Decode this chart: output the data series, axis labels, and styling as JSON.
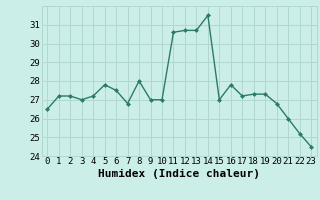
{
  "x": [
    0,
    1,
    2,
    3,
    4,
    5,
    6,
    7,
    8,
    9,
    10,
    11,
    12,
    13,
    14,
    15,
    16,
    17,
    18,
    19,
    20,
    21,
    22,
    23
  ],
  "y": [
    26.5,
    27.2,
    27.2,
    27.0,
    27.2,
    27.8,
    27.5,
    26.8,
    28.0,
    27.0,
    27.0,
    30.6,
    30.7,
    30.7,
    31.5,
    27.0,
    27.8,
    27.2,
    27.3,
    27.3,
    26.8,
    26.0,
    25.2,
    24.5
  ],
  "line_color": "#2d7a6a",
  "marker_color": "#2d7a6a",
  "bg_color": "#cceee8",
  "grid_color": "#b0d8d0",
  "xlabel": "Humidex (Indice chaleur)",
  "ylim": [
    24,
    32
  ],
  "xlim": [
    -0.5,
    23.5
  ],
  "yticks": [
    24,
    25,
    26,
    27,
    28,
    29,
    30,
    31
  ],
  "xticks": [
    0,
    1,
    2,
    3,
    4,
    5,
    6,
    7,
    8,
    9,
    10,
    11,
    12,
    13,
    14,
    15,
    16,
    17,
    18,
    19,
    20,
    21,
    22,
    23
  ],
  "tick_fontsize": 6.5,
  "xlabel_fontsize": 8,
  "line_width": 1.0,
  "marker_size": 2.5
}
